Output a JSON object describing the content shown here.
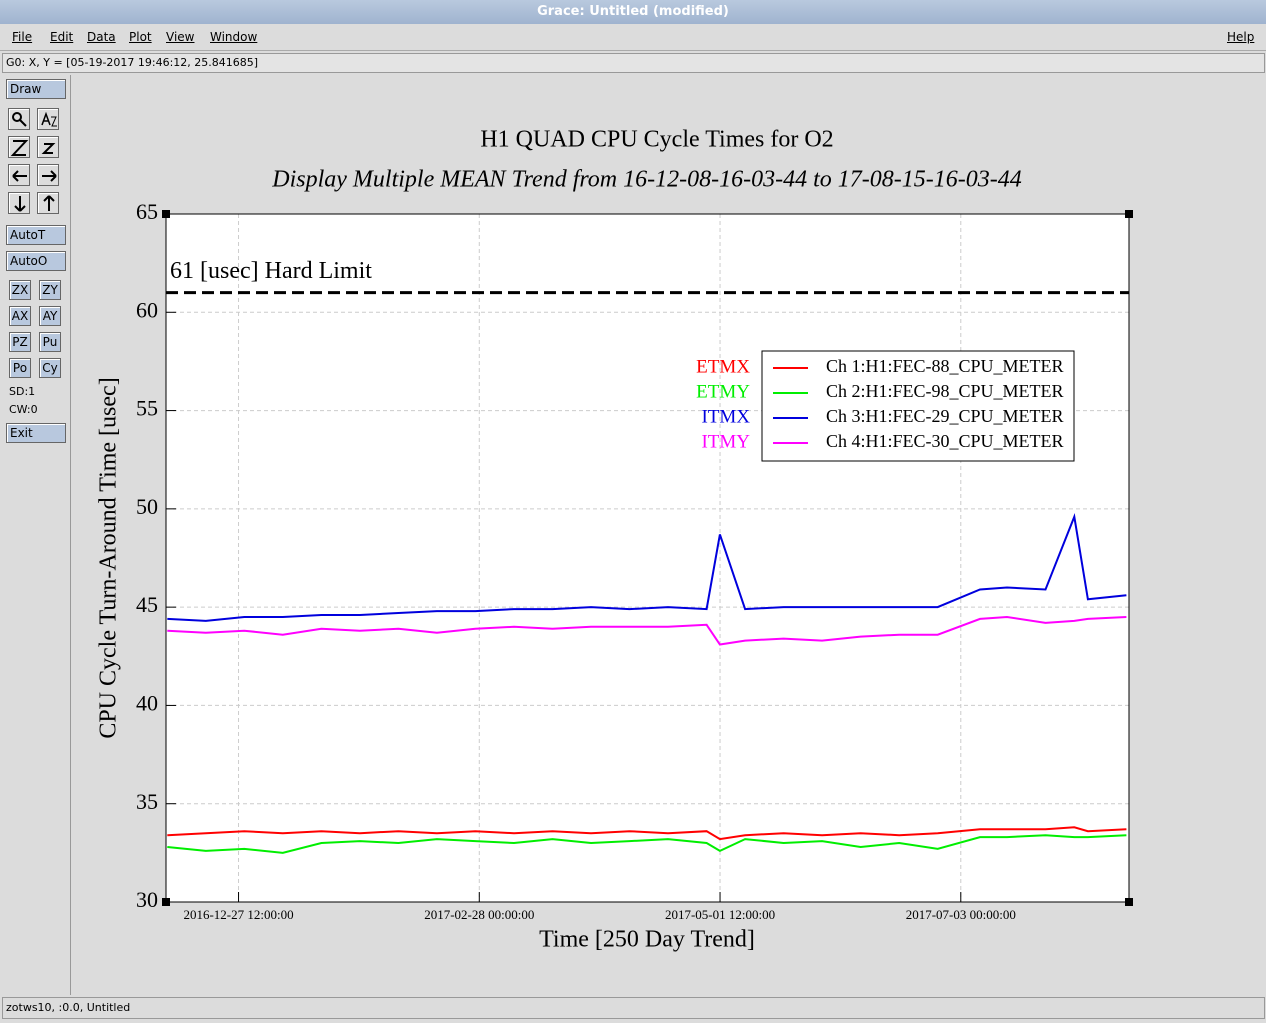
{
  "window": {
    "title": "Grace: Untitled (modified)"
  },
  "menu": {
    "items": [
      "File",
      "Edit",
      "Data",
      "Plot",
      "View",
      "Window"
    ],
    "help": "Help"
  },
  "locator": "G0: X, Y = [05-19-2017 19:46:12, 25.841685]",
  "toolbar": {
    "draw": "Draw",
    "buttons": [
      "AutoT",
      "AutoO"
    ],
    "grid_buttons": [
      "ZX",
      "ZY",
      "AX",
      "AY",
      "PZ",
      "Pu",
      "Po",
      "Cy"
    ],
    "sd": "SD:1",
    "cw": "CW:0",
    "exit": "Exit"
  },
  "status": "zotws10, :0.0, Untitled",
  "chart_data": {
    "type": "line",
    "title": "H1 QUAD CPU Cycle Times for O2",
    "subtitle": "Display Multiple MEAN Trend from 16-12-08-16-03-44 to 17-08-15-16-03-44",
    "xlabel": "Time [250 Day Trend]",
    "ylabel": "CPU Cycle Turn-Around Time [usec]",
    "x": [
      "2016-12-09 00:00:00",
      "2016-12-19 00:00:00",
      "2016-12-29 00:00:00",
      "2017-01-08 00:00:00",
      "2017-01-18 00:00:00",
      "2017-01-28 00:00:00",
      "2017-02-07 00:00:00",
      "2017-02-17 00:00:00",
      "2017-02-27 00:00:00",
      "2017-03-09 00:00:00",
      "2017-03-19 00:00:00",
      "2017-03-29 00:00:00",
      "2017-04-08 00:00:00",
      "2017-04-18 00:00:00",
      "2017-04-28 00:00:00",
      "2017-05-01 11:00:00",
      "2017-05-08 00:00:00",
      "2017-05-18 00:00:00",
      "2017-05-28 00:00:00",
      "2017-06-07 00:00:00",
      "2017-06-17 00:00:00",
      "2017-06-27 00:00:00",
      "2017-07-08 00:00:00",
      "2017-07-15 00:00:00",
      "2017-07-25 00:00:00",
      "2017-08-01 11:00:00",
      "2017-08-05 00:00:00",
      "2017-08-15 00:00:00"
    ],
    "series": [
      {
        "name": "Ch 1:H1:FEC-88_CPU_METER",
        "label": "ETMX",
        "color": "#ff0000",
        "values": [
          33.4,
          33.5,
          33.6,
          33.5,
          33.6,
          33.5,
          33.6,
          33.5,
          33.6,
          33.5,
          33.6,
          33.5,
          33.6,
          33.5,
          33.6,
          33.2,
          33.4,
          33.5,
          33.4,
          33.5,
          33.4,
          33.5,
          33.7,
          33.7,
          33.7,
          33.8,
          33.6,
          33.7
        ]
      },
      {
        "name": "Ch 2:H1:FEC-98_CPU_METER",
        "label": "ETMY",
        "color": "#00ee00",
        "values": [
          32.8,
          32.6,
          32.7,
          32.5,
          33.0,
          33.1,
          33.0,
          33.2,
          33.1,
          33.0,
          33.2,
          33.0,
          33.1,
          33.2,
          33.0,
          32.6,
          33.2,
          33.0,
          33.1,
          32.8,
          33.0,
          32.7,
          33.3,
          33.3,
          33.4,
          33.3,
          33.3,
          33.4
        ]
      },
      {
        "name": "Ch 3:H1:FEC-29_CPU_METER",
        "label": "ITMX",
        "color": "#0000dd",
        "values": [
          44.4,
          44.3,
          44.5,
          44.5,
          44.6,
          44.6,
          44.7,
          44.8,
          44.8,
          44.9,
          44.9,
          45.0,
          44.9,
          45.0,
          44.9,
          48.7,
          44.9,
          45.0,
          45.0,
          45.0,
          45.0,
          45.0,
          45.9,
          46.0,
          45.9,
          49.6,
          45.4,
          45.6
        ]
      },
      {
        "name": "Ch 4:H1:FEC-30_CPU_METER",
        "label": "ITMY",
        "color": "#ff00ff",
        "values": [
          43.8,
          43.7,
          43.8,
          43.6,
          43.9,
          43.8,
          43.9,
          43.7,
          43.9,
          44.0,
          43.9,
          44.0,
          44.0,
          44.0,
          44.1,
          43.1,
          43.3,
          43.4,
          43.3,
          43.5,
          43.6,
          43.6,
          44.4,
          44.5,
          44.2,
          44.3,
          44.4,
          44.5
        ]
      }
    ],
    "xlim": [
      "2016-12-08 16:03:44",
      "2017-08-15 16:03:44"
    ],
    "xticks": [
      "2016-12-27 12:00:00",
      "2017-02-28 00:00:00",
      "2017-05-01 12:00:00",
      "2017-07-03 00:00:00"
    ],
    "ylim": [
      30,
      65
    ],
    "yticks": [
      30,
      35,
      40,
      45,
      50,
      55,
      60,
      65
    ],
    "hline": {
      "value": 61,
      "label": "61 [usec] Hard Limit"
    },
    "grid": true,
    "legend": "upper right"
  }
}
